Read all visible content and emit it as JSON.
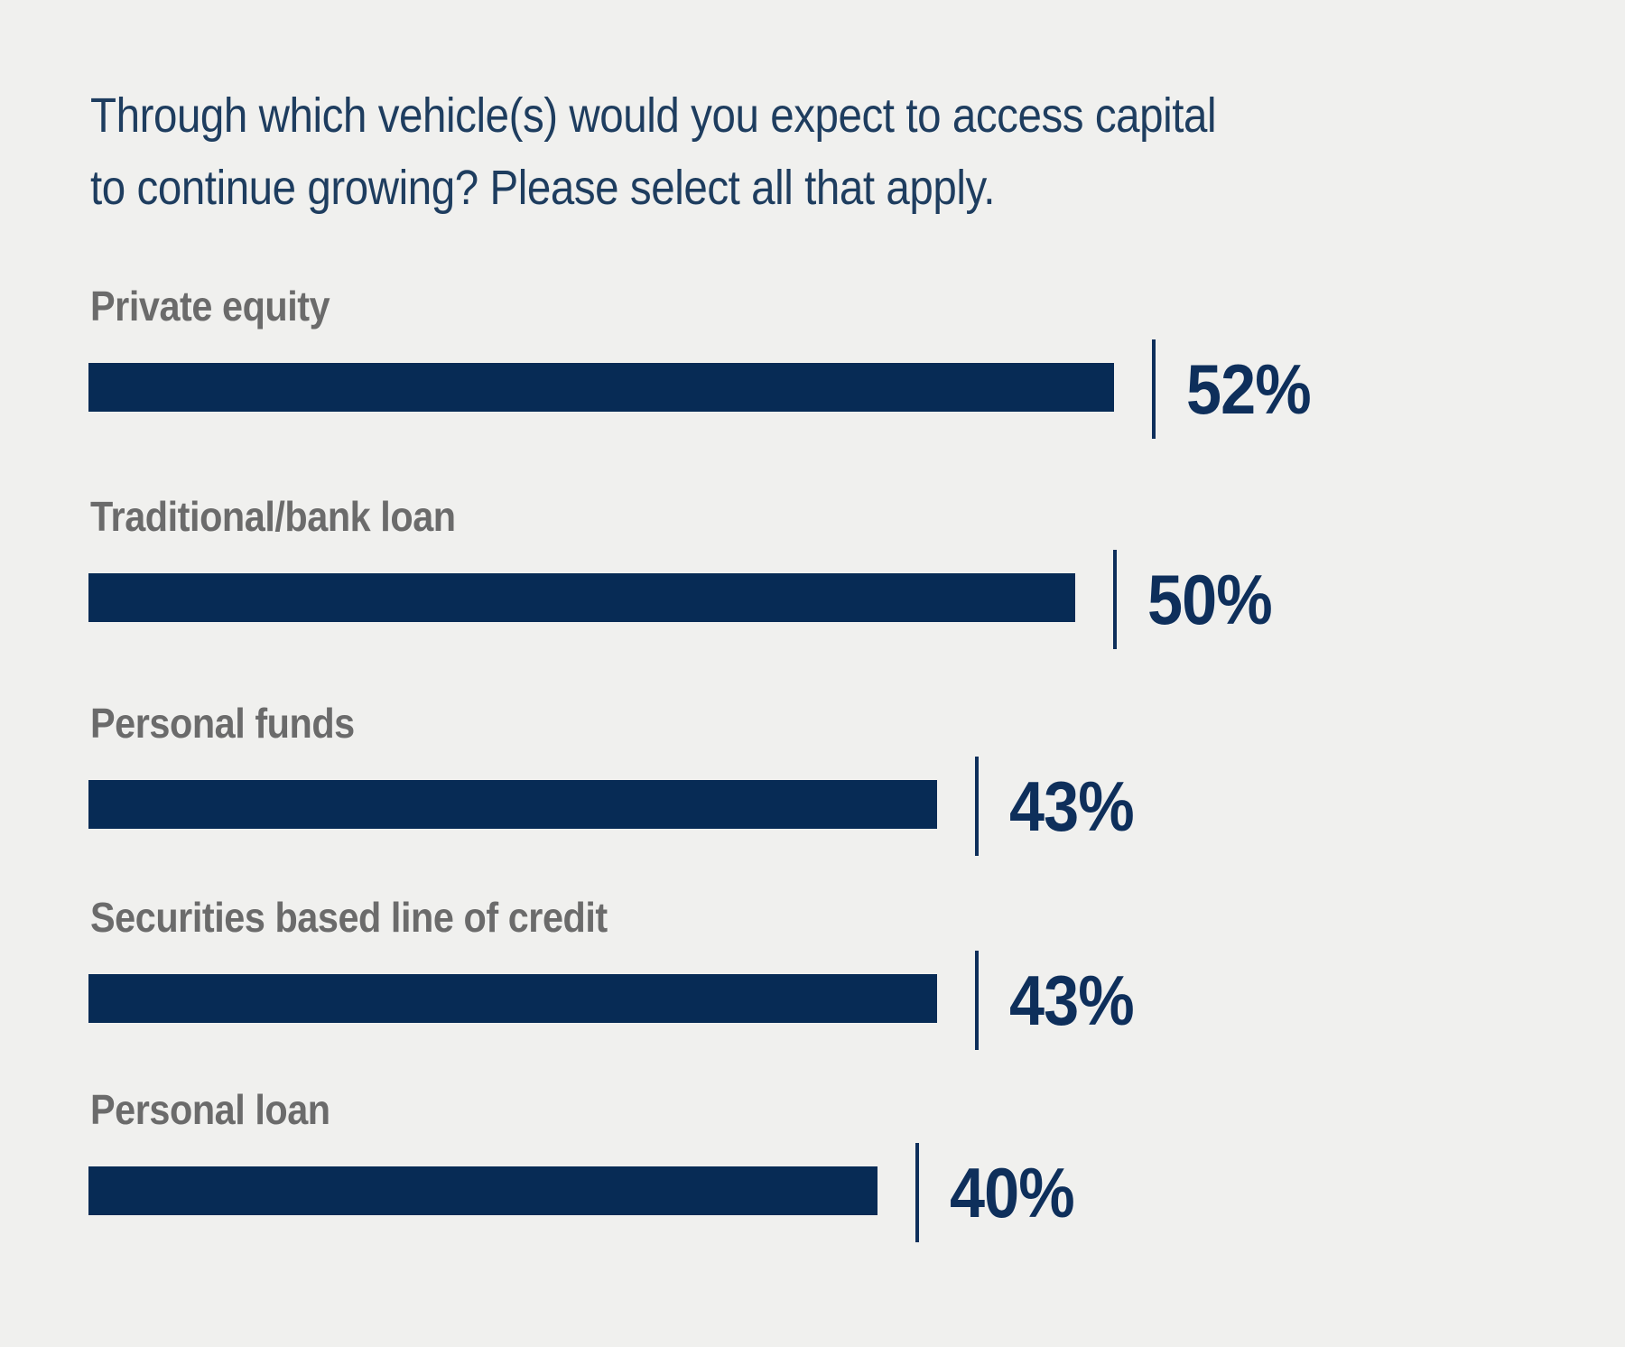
{
  "title": "Through which vehicle(s) would you expect to access capital to continue growing? Please select all that apply.",
  "title_lines": [
    "Through which vehicle(s) would you expect to access capital",
    "to continue growing? Please select all that apply."
  ],
  "chart_data": {
    "type": "bar",
    "orientation": "horizontal",
    "title": "Through which vehicle(s) would you expect to access capital to continue growing? Please select all that apply.",
    "categories": [
      "Private equity",
      "Traditional/bank loan",
      "Personal funds",
      "Securities based line of credit",
      "Personal loan"
    ],
    "values": [
      52,
      50,
      43,
      43,
      40
    ],
    "value_labels": [
      "52%",
      "50%",
      "43%",
      "43%",
      "40%"
    ],
    "unit": "percent",
    "grid": false,
    "legend": false,
    "axes_shown": false,
    "colors": {
      "bar": "#072B55",
      "tick": "#0E2F5B",
      "value_text": "#0E2F5B",
      "category_text": "#6B6B6B",
      "title_text": "#1E3D5F",
      "background": "#F0F0EE"
    }
  }
}
